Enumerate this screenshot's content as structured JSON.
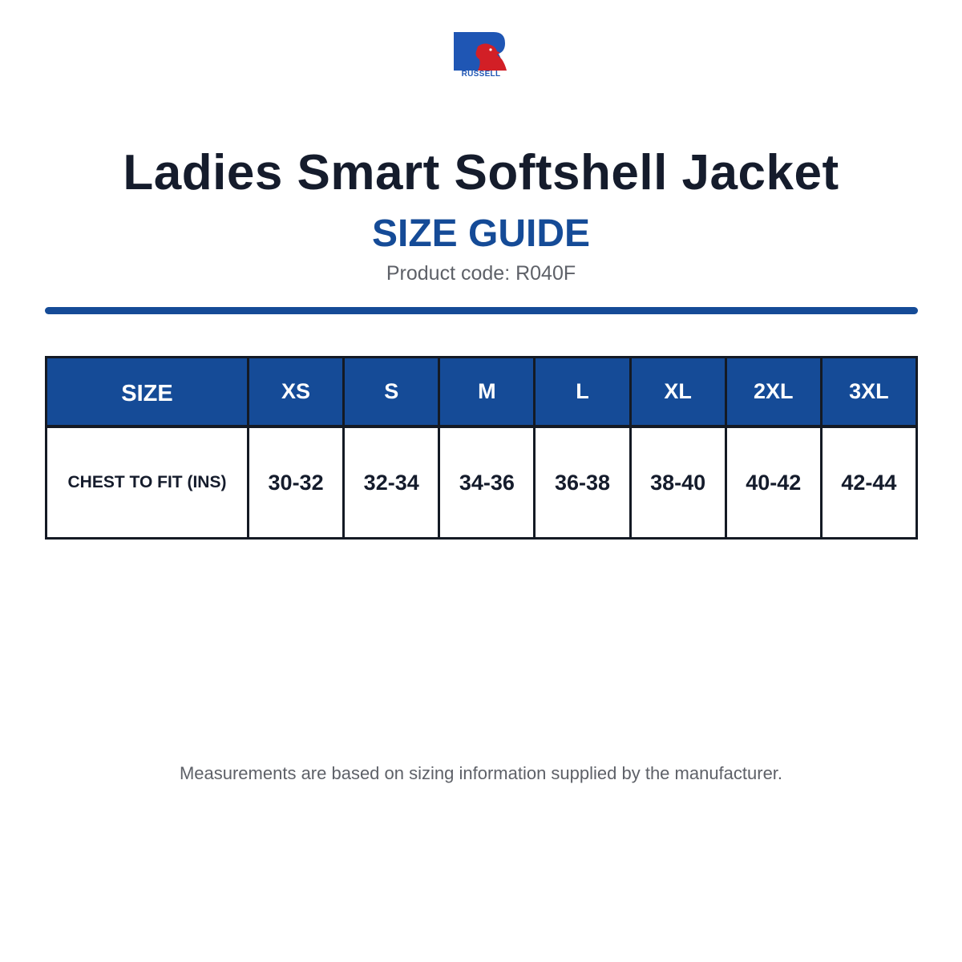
{
  "logo": {
    "brand": "RUSSELL",
    "colors": {
      "blue": "#1f56b4",
      "red": "#d21f26"
    }
  },
  "header": {
    "title": "Ladies Smart Softshell Jacket",
    "subtitle": "SIZE GUIDE",
    "product_code": "Product code: R040F"
  },
  "colors": {
    "accent": "#154b97",
    "title_text": "#151c2c",
    "muted_text": "#5e6168",
    "border": "#141a24"
  },
  "size_table": {
    "header_label": "SIZE",
    "sizes": [
      "XS",
      "S",
      "M",
      "L",
      "XL",
      "2XL",
      "3XL"
    ],
    "row_label": "CHEST TO FIT (INS)",
    "values": [
      "30-32",
      "32-34",
      "34-36",
      "36-38",
      "38-40",
      "40-42",
      "42-44"
    ]
  },
  "footer": {
    "note": "Measurements are based on sizing information supplied by the manufacturer."
  }
}
